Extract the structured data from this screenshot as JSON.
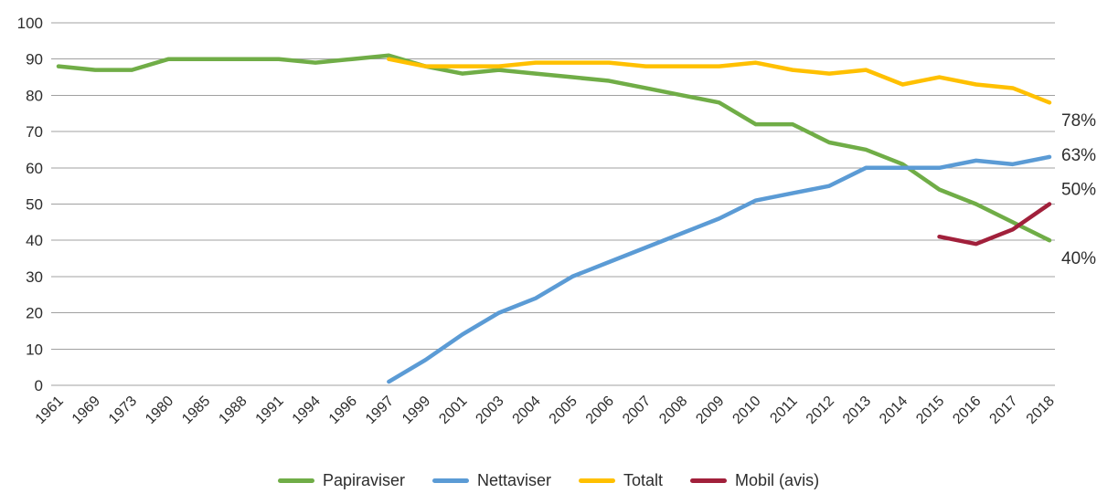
{
  "chart_data": {
    "type": "line",
    "title": "",
    "xlabel": "",
    "ylabel": "",
    "ylim": [
      0,
      100
    ],
    "ytick_step": 10,
    "grid": "horizontal",
    "legend_position": "bottom",
    "categories": [
      "1961",
      "1969",
      "1973",
      "1980",
      "1985",
      "1988",
      "1991",
      "1994",
      "1996",
      "1997",
      "1999",
      "2001",
      "2003",
      "2004",
      "2005",
      "2006",
      "2007",
      "2008",
      "2009",
      "2010",
      "2011",
      "2012",
      "2013",
      "2014",
      "2015",
      "2016",
      "2017",
      "2018"
    ],
    "series": [
      {
        "name": "Papiraviser",
        "color": "#70AD47",
        "values": [
          88,
          87,
          87,
          90,
          90,
          90,
          90,
          89,
          90,
          91,
          88,
          86,
          87,
          86,
          85,
          84,
          82,
          80,
          78,
          72,
          72,
          67,
          65,
          61,
          54,
          50,
          45,
          40
        ]
      },
      {
        "name": "Nettaviser",
        "color": "#5B9BD5",
        "values": [
          null,
          null,
          null,
          null,
          null,
          null,
          null,
          null,
          null,
          1,
          7,
          14,
          20,
          24,
          30,
          34,
          38,
          42,
          46,
          51,
          53,
          55,
          60,
          60,
          60,
          62,
          61,
          63
        ]
      },
      {
        "name": "Totalt",
        "color": "#FFC000",
        "values": [
          null,
          null,
          null,
          null,
          null,
          null,
          null,
          null,
          null,
          90,
          88,
          88,
          88,
          89,
          89,
          89,
          88,
          88,
          88,
          89,
          87,
          86,
          87,
          83,
          85,
          83,
          82,
          78
        ]
      },
      {
        "name": "Mobil (avis)",
        "color": "#A1203B",
        "values": [
          null,
          null,
          null,
          null,
          null,
          null,
          null,
          null,
          null,
          null,
          null,
          null,
          null,
          null,
          null,
          null,
          null,
          null,
          null,
          null,
          null,
          null,
          null,
          null,
          41,
          39,
          43,
          50
        ]
      }
    ],
    "end_labels": [
      {
        "text": "78%",
        "series": "Totalt",
        "y_value": 73
      },
      {
        "text": "63%",
        "series": "Nettaviser",
        "y_value": 63.5
      },
      {
        "text": "50%",
        "series": "Mobil (avis)",
        "y_value": 54
      },
      {
        "text": "40%",
        "series": "Papiraviser",
        "y_value": 35
      }
    ]
  },
  "colors": {
    "background": "#ffffff",
    "gridline": "#a0a0a0",
    "text": "#2d2d2d"
  }
}
